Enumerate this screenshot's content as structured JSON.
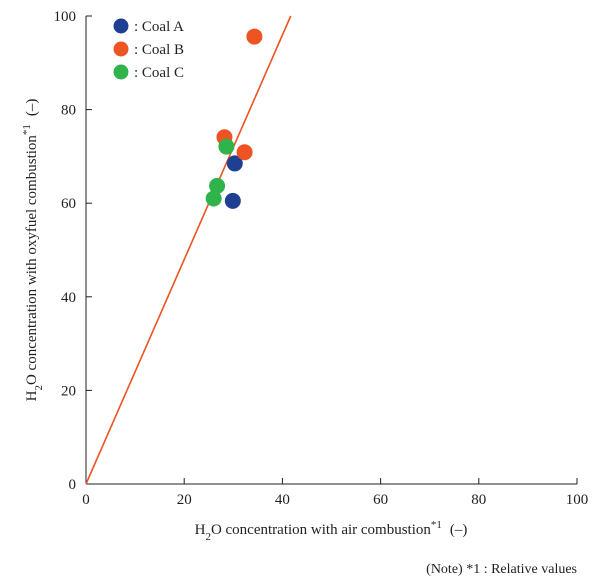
{
  "chart_data": {
    "type": "scatter",
    "xlabel": {
      "prefix": "H",
      "sub": "2",
      "main": "O concentration with air combustion",
      "sup": "*1",
      "unit": "(–)"
    },
    "ylabel": {
      "prefix": "H",
      "sub": "2",
      "main": "O concentration with oxyfuel combustion",
      "sup": "*1",
      "unit": "(–)"
    },
    "xlim": [
      0,
      100
    ],
    "ylim": [
      0,
      100
    ],
    "xticks": [
      0,
      20,
      40,
      60,
      80,
      100
    ],
    "yticks": [
      0,
      20,
      40,
      60,
      80,
      100
    ],
    "grid": false,
    "legend_position": "top-left",
    "series": [
      {
        "name": ": Coal A",
        "color": "#1f3f93",
        "points": [
          [
            30.3,
            68.5
          ],
          [
            29.9,
            60.5
          ]
        ]
      },
      {
        "name": ": Coal B",
        "color": "#ee5324",
        "points": [
          [
            34.3,
            95.6
          ],
          [
            28.2,
            74.1
          ],
          [
            32.3,
            70.9
          ]
        ]
      },
      {
        "name": ": Coal C",
        "color": "#2fb34a",
        "points": [
          [
            28.6,
            72.1
          ],
          [
            26.7,
            63.7
          ],
          [
            26.0,
            61.0
          ]
        ]
      }
    ],
    "fit_line": {
      "color": "#ee5324",
      "from": [
        0,
        0
      ],
      "to": [
        41.7,
        100
      ]
    },
    "note": "(Note)  *1 : Relative values"
  }
}
